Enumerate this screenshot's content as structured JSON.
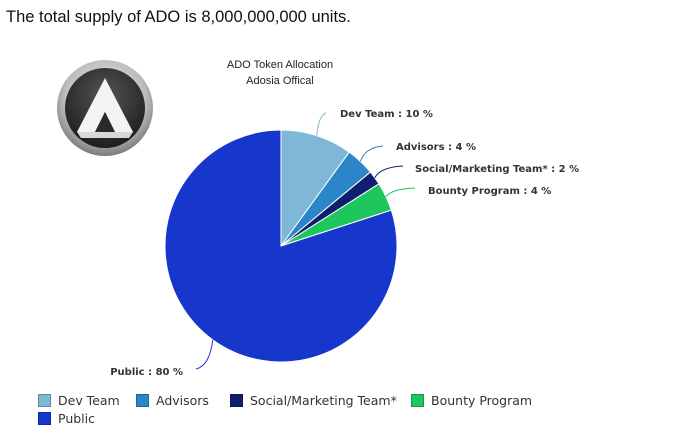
{
  "headline": "The total supply of ADO is 8,000,000,000 units.",
  "logo": {
    "icon": "ado-logo-icon"
  },
  "chart_data": {
    "type": "pie",
    "title": "ADO Token Allocation",
    "subtitle": "Adosia Offical",
    "start_angle_deg": 0,
    "slices": [
      {
        "name": "Dev Team",
        "value": 10,
        "label": "Dev Team : 10 %",
        "color": "#7fb8d6"
      },
      {
        "name": "Advisors",
        "value": 4,
        "label": "Advisors : 4 %",
        "color": "#2a86c8"
      },
      {
        "name": "Social/Marketing Team*",
        "value": 2,
        "label": "Social/Marketing Team* : 2 %",
        "color": "#0d1f6e"
      },
      {
        "name": "Bounty Program",
        "value": 4,
        "label": "Bounty Program : 4 %",
        "color": "#1ec75e"
      },
      {
        "name": "Public",
        "value": 80,
        "label": "Public : 80 %",
        "color": "#1737cc"
      }
    ],
    "legend": [
      "Dev Team",
      "Advisors",
      "Social/Marketing Team*",
      "Bounty Program",
      "Public"
    ],
    "legend_position": "bottom"
  }
}
